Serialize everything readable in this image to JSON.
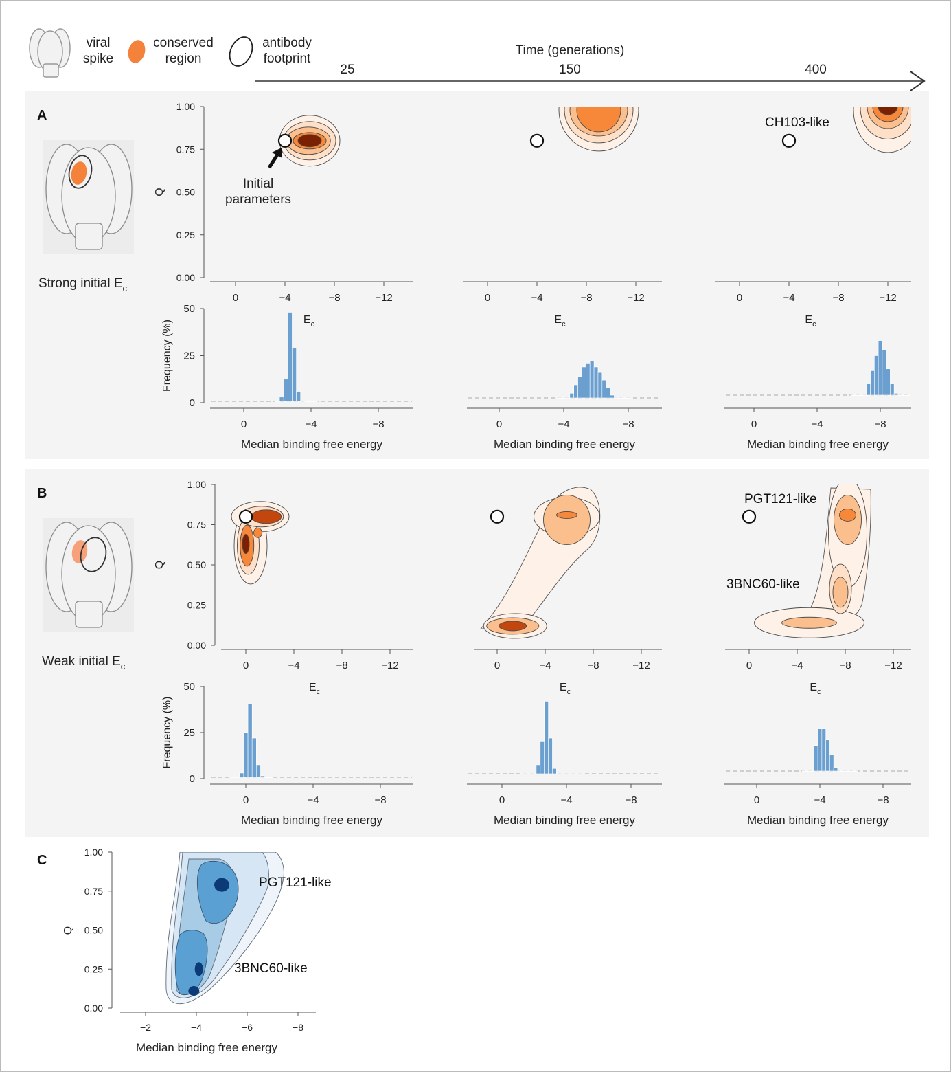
{
  "legend": {
    "spike_label": [
      "viral",
      "spike"
    ],
    "conserved_label": [
      "conserved",
      "region"
    ],
    "footprint_label": [
      "antibody",
      "footprint"
    ]
  },
  "time_axis": {
    "title": "Time (generations)",
    "ticks": [
      "25",
      "150",
      "400"
    ]
  },
  "panels": {
    "A": {
      "letter": "A",
      "caption": "Strong initial E",
      "caption_sub": "c"
    },
    "B": {
      "letter": "B",
      "caption": "Weak initial E",
      "caption_sub": "c"
    },
    "C": {
      "letter": "C"
    }
  },
  "annotations": {
    "initial_parameters": [
      "Initial",
      "parameters"
    ],
    "ch103": "CH103-like",
    "pgt121": "PGT121-like",
    "bnc60": "3BNC60-like"
  },
  "colors": {
    "orange_levels": [
      "#fef2e8",
      "#fde0c7",
      "#fbbf8e",
      "#f7883a",
      "#c4460f",
      "#7a2104"
    ],
    "blue_levels": [
      "#eef4fa",
      "#d6e6f4",
      "#a9cce6",
      "#5aa0d2",
      "#2c71b0",
      "#0b3a77"
    ],
    "histogram_bar": "#6b9fd0",
    "panel_background": "#f4f4f4"
  },
  "chart_data": [
    {
      "panel": "A",
      "generation": "25",
      "type": "heatmap",
      "xlabel": "E",
      "xlabel_sub": "c",
      "ylabel": "Q",
      "xticks": [
        "0",
        "−4",
        "−8",
        "−12"
      ],
      "yticks": [
        "0.00",
        "0.25",
        "0.50",
        "0.75",
        "1.00"
      ],
      "initial_point": {
        "x": -4,
        "y": 0.8
      },
      "density_peaks": [
        {
          "x": -6,
          "y": 0.8
        }
      ]
    },
    {
      "panel": "A",
      "generation": "25",
      "type": "bar",
      "xlabel": "Median binding free energy",
      "ylabel": "Frequency (%)",
      "xticks": [
        "0",
        "−4",
        "−8"
      ],
      "yticks": [
        "0",
        "25",
        "50"
      ],
      "bin_centers": [
        -2.0,
        -2.25,
        -2.5,
        -2.75,
        -3.0,
        -3.25,
        -3.5,
        -3.75,
        -4.0,
        -4.25
      ],
      "values": [
        0.3,
        3,
        12.5,
        48,
        29,
        6,
        1,
        0.3,
        0.1,
        0.05
      ]
    },
    {
      "panel": "A",
      "generation": "150",
      "type": "heatmap",
      "xlabel": "E",
      "xlabel_sub": "c",
      "ylabel": "Q",
      "xticks": [
        "0",
        "−4",
        "−8",
        "−12"
      ],
      "initial_point": {
        "x": -4,
        "y": 0.8
      },
      "density_peaks": [
        {
          "x": -9,
          "y": 0.95
        }
      ]
    },
    {
      "panel": "A",
      "generation": "150",
      "type": "bar",
      "xlabel": "Median binding free energy",
      "xticks": [
        "0",
        "−4",
        "−8"
      ],
      "bin_centers": [
        -3.75,
        -4.0,
        -4.25,
        -4.5,
        -4.75,
        -5.0,
        -5.25,
        -5.5,
        -5.75,
        -6.0,
        -6.25,
        -6.5,
        -6.75,
        -7.0,
        -7.25,
        -7.5,
        -7.75,
        -8.0
      ],
      "values": [
        0.3,
        0.8,
        2,
        5,
        9.5,
        14,
        19,
        21,
        22,
        19,
        16,
        12,
        8,
        4,
        1.8,
        0.8,
        0.3,
        0.1
      ]
    },
    {
      "panel": "A",
      "generation": "400",
      "type": "heatmap",
      "xlabel": "E",
      "xlabel_sub": "c",
      "ylabel": "Q",
      "xticks": [
        "0",
        "−4",
        "−8",
        "−12"
      ],
      "initial_point": {
        "x": -4,
        "y": 0.8
      },
      "density_peaks": [
        {
          "x": -12,
          "y": 0.98
        }
      ]
    },
    {
      "panel": "A",
      "generation": "400",
      "type": "bar",
      "xlabel": "Median binding free energy",
      "xticks": [
        "0",
        "−4",
        "−8"
      ],
      "bin_centers": [
        -6.25,
        -6.5,
        -6.75,
        -7.0,
        -7.25,
        -7.5,
        -7.75,
        -8.0,
        -8.25,
        -8.5,
        -8.75,
        -9.0,
        -9.25,
        -9.5,
        -9.75
      ],
      "values": [
        0.3,
        0.5,
        1.2,
        4,
        10,
        17,
        25,
        33,
        28,
        18,
        10,
        5,
        2,
        1,
        0.3
      ]
    },
    {
      "panel": "B",
      "generation": "25",
      "type": "heatmap",
      "xlabel": "E",
      "xlabel_sub": "c",
      "ylabel": "Q",
      "xticks": [
        "0",
        "−4",
        "−8",
        "−12"
      ],
      "yticks": [
        "0.00",
        "0.25",
        "0.50",
        "0.75",
        "1.00"
      ],
      "initial_point": {
        "x": 0,
        "y": 0.8
      },
      "density_peaks": [
        {
          "x": -1.7,
          "y": 0.8
        },
        {
          "x": 0,
          "y": 0.62
        }
      ]
    },
    {
      "panel": "B",
      "generation": "25",
      "type": "bar",
      "xlabel": "Median binding free energy",
      "ylabel": "Frequency (%)",
      "xticks": [
        "0",
        "−4",
        "−8"
      ],
      "yticks": [
        "0",
        "25",
        "50"
      ],
      "bin_centers": [
        0.75,
        0.5,
        0.25,
        0.0,
        -0.25,
        -0.5,
        -0.75,
        -1.0,
        -1.25,
        -1.5
      ],
      "values": [
        0.3,
        0.8,
        3,
        25,
        40.5,
        22,
        7.5,
        1.5,
        0.3,
        0.1
      ]
    },
    {
      "panel": "B",
      "generation": "150",
      "type": "heatmap",
      "xlabel": "E",
      "xlabel_sub": "c",
      "ylabel": "Q",
      "xticks": [
        "0",
        "−4",
        "−8",
        "−12"
      ],
      "initial_point": {
        "x": 0,
        "y": 0.8
      },
      "density_peaks": [
        {
          "x": -1.3,
          "y": 0.12
        },
        {
          "x": -5.8,
          "y": 0.81
        }
      ]
    },
    {
      "panel": "B",
      "generation": "150",
      "type": "bar",
      "xlabel": "Median binding free energy",
      "xticks": [
        "0",
        "−4",
        "−8"
      ],
      "bin_centers": [
        -1.25,
        -1.5,
        -1.75,
        -2.0,
        -2.25,
        -2.5,
        -2.75,
        -3.0,
        -3.25,
        -3.5,
        -3.75,
        -4.0,
        -4.25,
        -4.5,
        -4.75,
        -5.0
      ],
      "values": [
        0.1,
        0.3,
        0.8,
        2,
        7.5,
        20,
        42,
        22,
        5.5,
        2.5,
        1,
        0.4,
        0.2,
        0.1,
        0.05,
        0.02
      ]
    },
    {
      "panel": "B",
      "generation": "400",
      "type": "heatmap",
      "xlabel": "E",
      "xlabel_sub": "c",
      "ylabel": "Q",
      "xticks": [
        "0",
        "−4",
        "−8",
        "−12"
      ],
      "initial_point": {
        "x": 0,
        "y": 0.8
      },
      "density_peaks": [
        {
          "x": -8.2,
          "y": 0.81
        },
        {
          "x": -7.5,
          "y": 0.35
        },
        {
          "x": -5,
          "y": 0.14
        }
      ]
    },
    {
      "panel": "B",
      "generation": "400",
      "type": "bar",
      "xlabel": "Median binding free energy",
      "xticks": [
        "0",
        "−4",
        "−8"
      ],
      "bin_centers": [
        -3.0,
        -3.25,
        -3.5,
        -3.75,
        -4.0,
        -4.25,
        -4.5,
        -4.75,
        -5.0,
        -5.25,
        -5.5,
        -5.75,
        -6.0,
        -6.25
      ],
      "values": [
        0.2,
        0.5,
        1.2,
        18,
        27,
        27,
        21,
        13,
        6,
        2,
        0.8,
        0.4,
        0.2,
        0.1
      ]
    },
    {
      "panel": "C",
      "type": "heatmap",
      "xlabel": "Median binding free energy",
      "ylabel": "Q",
      "xticks": [
        "−2",
        "−4",
        "−6",
        "−8"
      ],
      "yticks": [
        "0.00",
        "0.25",
        "0.50",
        "0.75",
        "1.00"
      ],
      "density_peaks": [
        {
          "x": -5.0,
          "y": 0.79
        },
        {
          "x": -4.1,
          "y": 0.25
        },
        {
          "x": -3.9,
          "y": 0.11
        }
      ]
    }
  ]
}
